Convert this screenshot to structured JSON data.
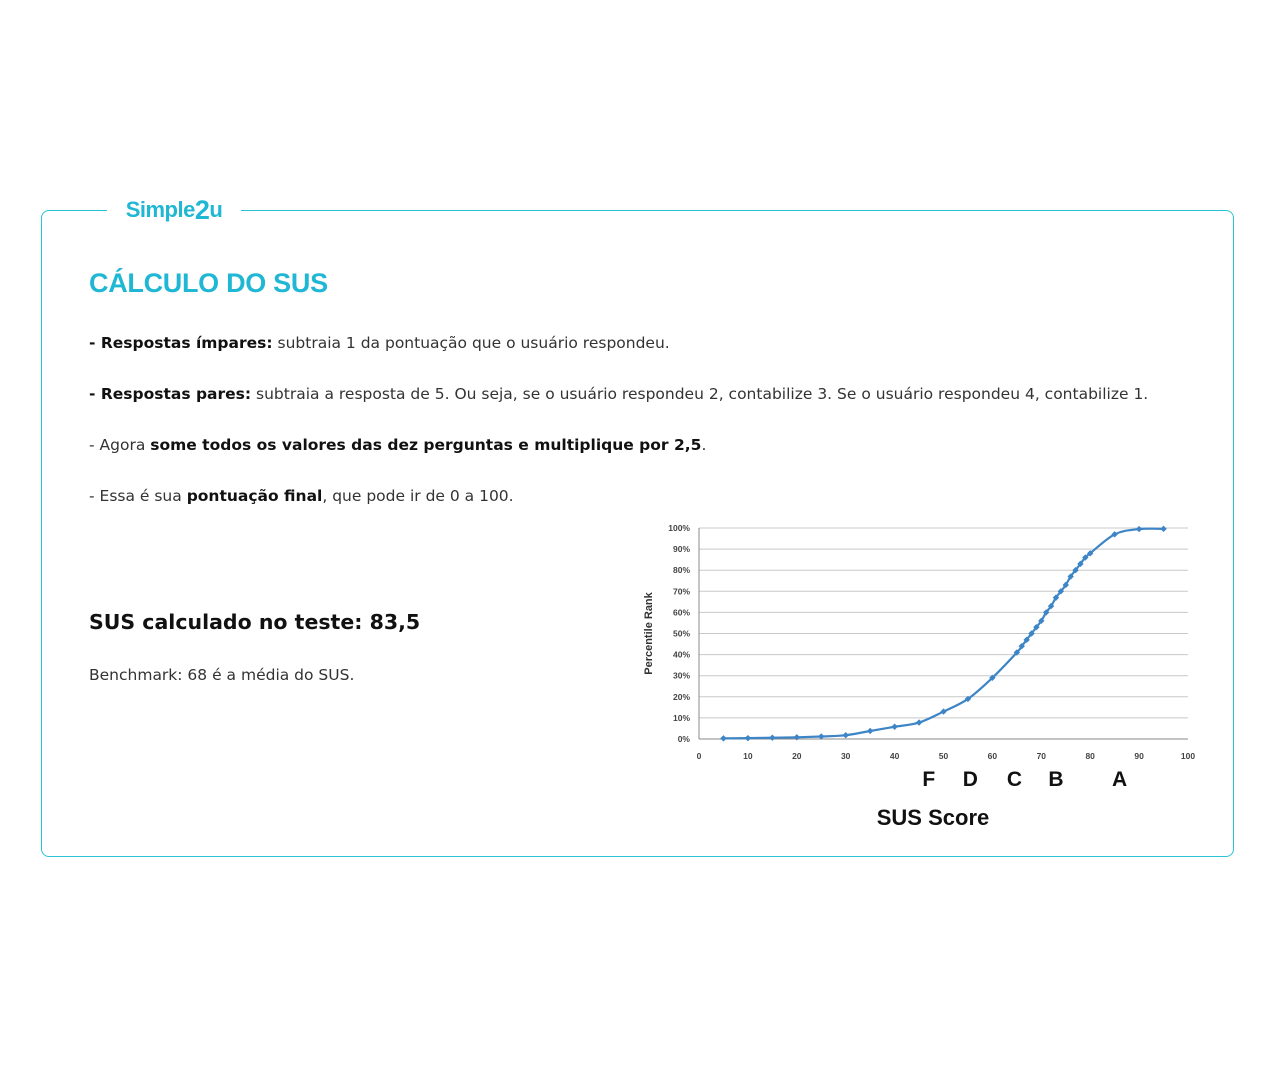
{
  "brand": {
    "logo_text_start": "Simple",
    "logo_text_2": "2",
    "logo_text_end": "u",
    "accent_color": "#1fb7d4"
  },
  "page_title": "CÁLCULO DO SUS",
  "rules": {
    "odd": {
      "bold": "- Respostas ímpares:",
      "text": " subtraia 1 da pontuação que o usuário respondeu."
    },
    "even": {
      "bold": "- Respostas pares:",
      "text": " subtraia a resposta de 5. Ou seja, se o usuário respondeu 2, contabilize 3. Se o usuário respondeu 4, contabilize 1."
    },
    "sum": {
      "prefix": "- Agora ",
      "bold": "some todos os valores das dez perguntas e multiplique por 2,5",
      "suffix": "."
    },
    "final": {
      "prefix": "- Essa é sua ",
      "bold": "pontuação final",
      "suffix": ", que pode ir de 0 a 100."
    }
  },
  "result_text": "SUS calculado no teste: 83,5",
  "benchmark_text": "Benchmark: 68 é a média do SUS.",
  "chart_data": {
    "type": "line",
    "xlabel": "SUS Score",
    "ylabel": "Percentile Rank",
    "xlim": [
      0,
      100
    ],
    "ylim": [
      0,
      100
    ],
    "x_ticks": [
      "0",
      "10",
      "20",
      "30",
      "40",
      "50",
      "60",
      "70",
      "80",
      "90",
      "100"
    ],
    "y_ticks": [
      "0%",
      "10%",
      "20%",
      "30%",
      "40%",
      "50%",
      "60%",
      "70%",
      "80%",
      "90%",
      "100%"
    ],
    "grid": true,
    "line_color": "#3d85c6",
    "series": [
      {
        "x": [
          5,
          10,
          15,
          20,
          25,
          30,
          35,
          40,
          45,
          50,
          55,
          60,
          65,
          66,
          67,
          68,
          69,
          70,
          71,
          72,
          73,
          74,
          75,
          76,
          77,
          78,
          79,
          80,
          85,
          90,
          95
        ],
        "values": [
          0.3,
          0.4,
          0.6,
          0.8,
          1.2,
          1.8,
          3.8,
          5.8,
          7.8,
          13,
          19,
          29,
          41,
          44,
          47,
          50,
          53,
          56,
          60,
          63,
          67,
          70,
          73,
          77,
          80,
          83,
          86,
          88,
          97,
          99.5,
          99.6
        ]
      }
    ],
    "grade_labels": [
      {
        "label": "F",
        "x": 47
      },
      {
        "label": "D",
        "x": 55.5
      },
      {
        "label": "C",
        "x": 64.5
      },
      {
        "label": "B",
        "x": 73
      },
      {
        "label": "A",
        "x": 86
      }
    ]
  }
}
